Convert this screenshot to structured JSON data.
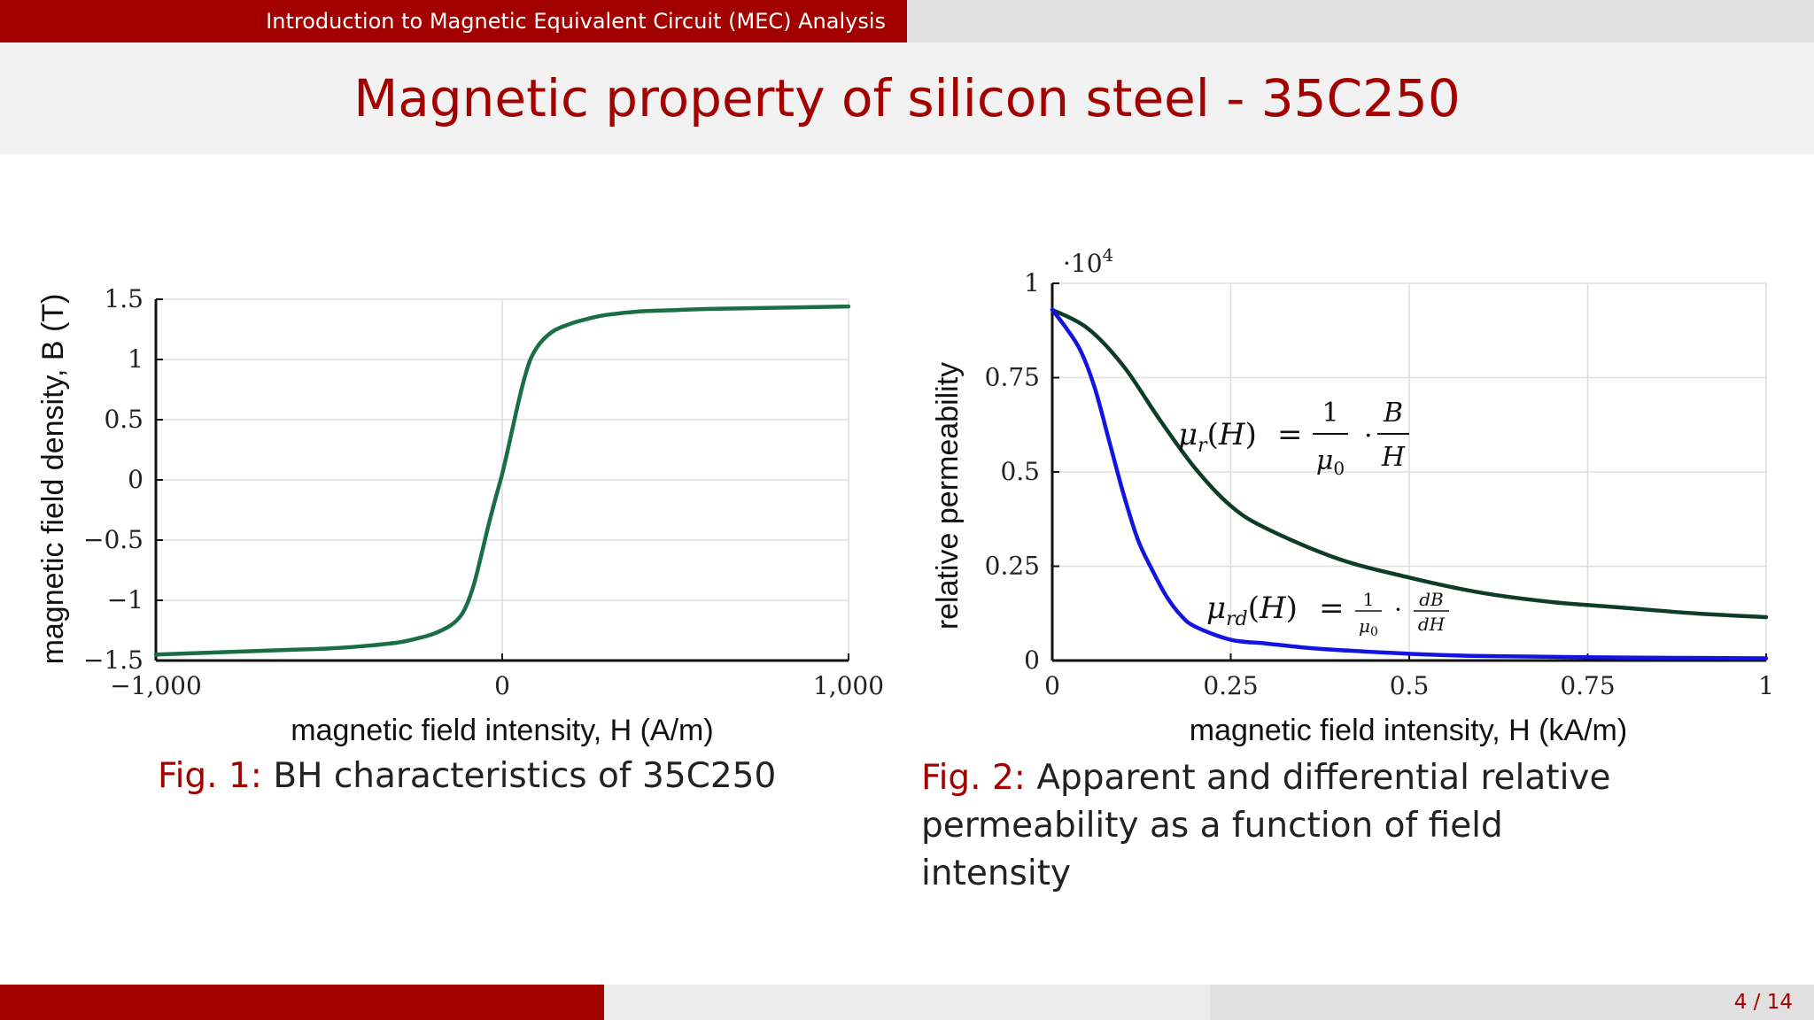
{
  "header": {
    "section_title": "Introduction to Magnetic Equivalent Circuit (MEC) Analysis",
    "slide_title": "Magnetic property of silicon steel - 35C250"
  },
  "footer": {
    "page_number": "4 / 14"
  },
  "captions": {
    "fig1": {
      "label": "Fig. 1:",
      "text": "BH characteristics of 35C250"
    },
    "fig2": {
      "label": "Fig. 2:",
      "text": "Apparent and differential relative permeability as a function of field intensity"
    }
  },
  "colors": {
    "accent": "#a30000",
    "bh_curve": "#1a6e44",
    "mu_r": "#0d3d26",
    "mu_rd": "#1414e0"
  },
  "chart_data": [
    {
      "type": "line",
      "xlabel": "magnetic field intensity, H (A/m)",
      "ylabel": "magnetic field density, B (T)",
      "xlim": [
        -1000,
        1000
      ],
      "ylim": [
        -1.5,
        1.5
      ],
      "x_ticks": [
        "−1,000",
        "0",
        "1,000"
      ],
      "y_ticks": [
        "−1.5",
        "−1",
        "−0.5",
        "0",
        "0.5",
        "1",
        "1.5"
      ],
      "grid": true,
      "series": [
        {
          "x": [
            -1000,
            -800,
            -600,
            -500,
            -400,
            -300,
            -250,
            -200,
            -150,
            -120,
            -100,
            -80,
            -60,
            -40,
            -20,
            0,
            20,
            40,
            60,
            80,
            100,
            120,
            150,
            200,
            250,
            300,
            400,
            500,
            600,
            800,
            1000
          ],
          "y": [
            -1.45,
            -1.43,
            -1.41,
            -1.4,
            -1.38,
            -1.35,
            -1.32,
            -1.28,
            -1.21,
            -1.13,
            -1.02,
            -0.85,
            -0.62,
            -0.38,
            -0.16,
            0.05,
            0.3,
            0.56,
            0.8,
            0.99,
            1.1,
            1.17,
            1.24,
            1.3,
            1.34,
            1.37,
            1.4,
            1.41,
            1.42,
            1.43,
            1.44
          ]
        }
      ]
    },
    {
      "type": "line",
      "xlabel": "magnetic field intensity, H (kA/m)",
      "ylabel": "relative permeability",
      "y_multiplier": "·10",
      "y_multiplier_exp": "4",
      "xlim": [
        0,
        1
      ],
      "ylim": [
        0,
        1
      ],
      "x_ticks": [
        "0",
        "0.25",
        "0.5",
        "0.75",
        "1"
      ],
      "y_ticks": [
        "0",
        "0.25",
        "0.5",
        "0.75",
        "1"
      ],
      "grid": true,
      "series": [
        {
          "x": [
            0,
            0.05,
            0.1,
            0.15,
            0.2,
            0.25,
            0.3,
            0.4,
            0.5,
            0.6,
            0.7,
            0.8,
            0.9,
            1.0
          ],
          "y": [
            0.93,
            0.88,
            0.78,
            0.64,
            0.51,
            0.41,
            0.35,
            0.27,
            0.22,
            0.18,
            0.155,
            0.14,
            0.125,
            0.115
          ]
        },
        {
          "x": [
            0,
            0.02,
            0.04,
            0.06,
            0.08,
            0.1,
            0.12,
            0.14,
            0.16,
            0.18,
            0.2,
            0.25,
            0.3,
            0.35,
            0.4,
            0.5,
            0.6,
            0.8,
            1.0
          ],
          "y": [
            0.93,
            0.88,
            0.82,
            0.72,
            0.58,
            0.44,
            0.32,
            0.24,
            0.17,
            0.12,
            0.09,
            0.055,
            0.045,
            0.035,
            0.028,
            0.018,
            0.012,
            0.008,
            0.006
          ]
        }
      ]
    }
  ]
}
